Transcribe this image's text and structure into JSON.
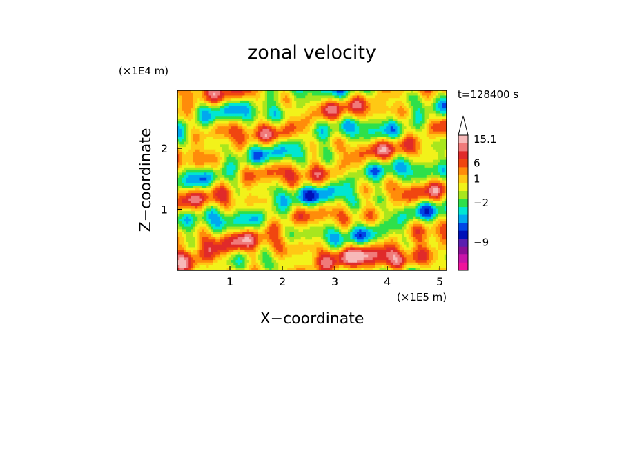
{
  "chart_data": {
    "type": "heatmap",
    "title": "zonal velocity",
    "xlabel": "X−coordinate",
    "ylabel": "Z−coordinate",
    "x_scale_label": "(×1E5 m)",
    "y_scale_label": "(×1E4 m)",
    "time_label": "t=128400 s",
    "xlim": [
      0,
      5.13
    ],
    "ylim": [
      0,
      2.95
    ],
    "x_ticks": [
      {
        "value": 1,
        "label": "1"
      },
      {
        "value": 2,
        "label": "2"
      },
      {
        "value": 3,
        "label": "3"
      },
      {
        "value": 4,
        "label": "4"
      },
      {
        "value": 5,
        "label": "5"
      }
    ],
    "y_ticks": [
      {
        "value": 1,
        "label": "1"
      },
      {
        "value": 2,
        "label": "2"
      }
    ],
    "colorbar": {
      "levels_low_to_high": [
        {
          "color": "#f0149b"
        },
        {
          "color": "#c815a8"
        },
        {
          "color": "#8c0f96"
        },
        {
          "color": "#5a1fb0"
        },
        {
          "color": "#0010b8"
        },
        {
          "color": "#0046e6"
        },
        {
          "color": "#00a8f0"
        },
        {
          "color": "#00e6d2"
        },
        {
          "color": "#2ee04a"
        },
        {
          "color": "#a8e61e"
        },
        {
          "color": "#f2f21a"
        },
        {
          "color": "#ffc814"
        },
        {
          "color": "#ff8c0a"
        },
        {
          "color": "#f04610"
        },
        {
          "color": "#e02a2a"
        },
        {
          "color": "#f07a7a"
        },
        {
          "color": "#f7b9b9"
        }
      ],
      "labels": [
        {
          "value": "15.1",
          "level": 16
        },
        {
          "value": "6",
          "level": 13
        },
        {
          "value": "1",
          "level": 11
        },
        {
          "value": "−2",
          "level": 8
        },
        {
          "value": "−9",
          "level": 3
        }
      ],
      "extend": "max"
    },
    "field": {
      "description_mode": "procedural",
      "grid_cols": 120,
      "grid_rows": 70
    }
  }
}
